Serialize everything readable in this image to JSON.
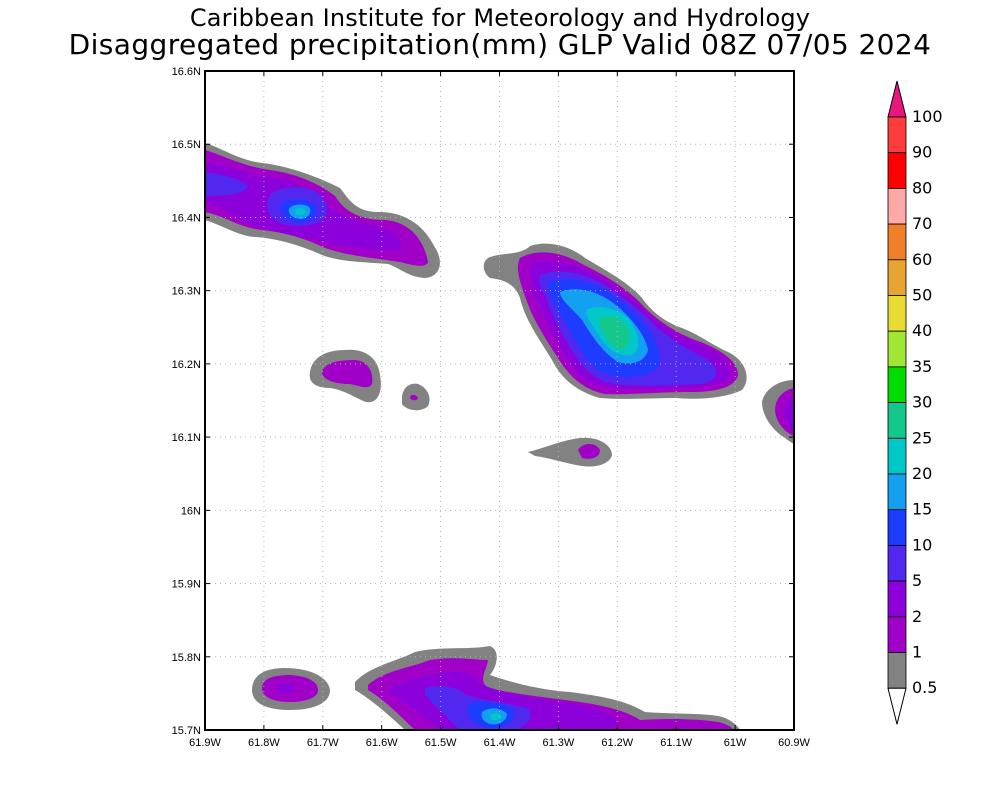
{
  "title": {
    "line1": "Caribbean Institute for Meteorology and Hydrology",
    "line2": "Disaggregated precipitation(mm) GLP Valid 08Z 07/05 2024"
  },
  "map": {
    "lat_labels": [
      "16.6N",
      "16.5N",
      "16.4N",
      "16.3N",
      "16.2N",
      "16.1N",
      "16N",
      "15.9N",
      "15.8N",
      "15.7N"
    ],
    "lon_labels": [
      "61.9W",
      "61.8W",
      "61.7W",
      "61.6W",
      "61.5W",
      "61.4W",
      "61.3W",
      "61.2W",
      "61.1W",
      "61W",
      "60.9W"
    ],
    "grid": true
  },
  "colorbar": {
    "labels": [
      "100",
      "90",
      "80",
      "70",
      "60",
      "50",
      "40",
      "35",
      "30",
      "25",
      "20",
      "15",
      "10",
      "5",
      "2",
      "1",
      "0.5"
    ],
    "colors": {
      "above100": "#e8177f",
      "90-100": "#ff3c3c",
      "80-90": "#ff0000",
      "70-80": "#ffa8a8",
      "60-70": "#f07f2a",
      "50-60": "#e8a432",
      "40-50": "#e8dc32",
      "35-40": "#a0e632",
      "30-35": "#00dc00",
      "25-30": "#14c88c",
      "20-25": "#00c8c8",
      "15-20": "#14a0f0",
      "10-15": "#1e3cff",
      "5-10": "#5028f0",
      "2-5": "#8c00dc",
      "1-2": "#a000c8",
      "0.5-1": "#828282",
      "below0.5": "#ffffff"
    }
  }
}
